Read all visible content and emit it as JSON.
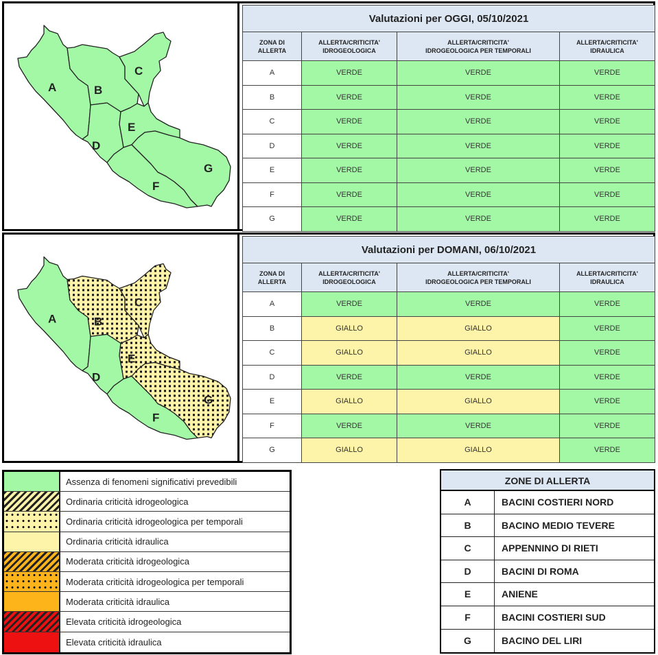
{
  "colors": {
    "verde": "#a3f8a6",
    "giallo": "#fdf3a9",
    "header_bg": "#dde7f3",
    "map_green": "#a3f8a6",
    "map_yellow": "#fdf3a9"
  },
  "table_headers": {
    "zona": [
      "ZONA DI",
      "ALLERTA"
    ],
    "idrogeologica": [
      "ALLERTA/CRITICITA'",
      "IDROGEOLOGICA"
    ],
    "temporali": [
      "ALLERTA/CRITICITA'",
      "IDROGEOLOGICA PER TEMPORALI"
    ],
    "idraulica": [
      "ALLERTA/CRITICITA'",
      "IDRAULICA"
    ]
  },
  "map_labels": [
    "A",
    "B",
    "C",
    "D",
    "E",
    "F",
    "G"
  ],
  "today": {
    "title": "Valutazioni per OGGI, 05/10/2021",
    "rows": [
      {
        "zone": "A",
        "idrogeologica": "VERDE",
        "temporali": "VERDE",
        "idraulica": "VERDE"
      },
      {
        "zone": "B",
        "idrogeologica": "VERDE",
        "temporali": "VERDE",
        "idraulica": "VERDE"
      },
      {
        "zone": "C",
        "idrogeologica": "VERDE",
        "temporali": "VERDE",
        "idraulica": "VERDE"
      },
      {
        "zone": "D",
        "idrogeologica": "VERDE",
        "temporali": "VERDE",
        "idraulica": "VERDE"
      },
      {
        "zone": "E",
        "idrogeologica": "VERDE",
        "temporali": "VERDE",
        "idraulica": "VERDE"
      },
      {
        "zone": "F",
        "idrogeologica": "VERDE",
        "temporali": "VERDE",
        "idraulica": "VERDE"
      },
      {
        "zone": "G",
        "idrogeologica": "VERDE",
        "temporali": "VERDE",
        "idraulica": "VERDE"
      }
    ]
  },
  "tomorrow": {
    "title": "Valutazioni per DOMANI, 06/10/2021",
    "rows": [
      {
        "zone": "A",
        "idrogeologica": "VERDE",
        "temporali": "VERDE",
        "idraulica": "VERDE"
      },
      {
        "zone": "B",
        "idrogeologica": "GIALLO",
        "temporali": "GIALLO",
        "idraulica": "VERDE"
      },
      {
        "zone": "C",
        "idrogeologica": "GIALLO",
        "temporali": "GIALLO",
        "idraulica": "VERDE"
      },
      {
        "zone": "D",
        "idrogeologica": "VERDE",
        "temporali": "VERDE",
        "idraulica": "VERDE"
      },
      {
        "zone": "E",
        "idrogeologica": "GIALLO",
        "temporali": "GIALLO",
        "idraulica": "VERDE"
      },
      {
        "zone": "F",
        "idrogeologica": "VERDE",
        "temporali": "VERDE",
        "idraulica": "VERDE"
      },
      {
        "zone": "G",
        "idrogeologica": "GIALLO",
        "temporali": "GIALLO",
        "idraulica": "VERDE"
      }
    ]
  },
  "legend": [
    {
      "label": "Assenza di fenomeni significativi prevedibili",
      "swatch": "green"
    },
    {
      "label": "Ordinaria criticità idrogeologica",
      "swatch": "yellow-hatch"
    },
    {
      "label": "Ordinaria criticità idrogeologica per temporali",
      "swatch": "yellow-dots"
    },
    {
      "label": "Ordinaria criticità idraulica",
      "swatch": "yellow"
    },
    {
      "label": "Moderata criticità idrogeologica",
      "swatch": "orange-hatch"
    },
    {
      "label": "Moderata criticità idrogeologica per temporali",
      "swatch": "orange-dots"
    },
    {
      "label": "Moderata criticità idraulica",
      "swatch": "orange"
    },
    {
      "label": "Elevata criticità idrogeologica",
      "swatch": "red-hatch"
    },
    {
      "label": "Elevata criticità idraulica",
      "swatch": "red"
    }
  ],
  "zones": {
    "title": "ZONE DI ALLERTA",
    "items": [
      {
        "letter": "A",
        "name": "BACINI COSTIERI NORD"
      },
      {
        "letter": "B",
        "name": "BACINO MEDIO TEVERE"
      },
      {
        "letter": "C",
        "name": "APPENNINO DI RIETI"
      },
      {
        "letter": "D",
        "name": "BACINI DI ROMA"
      },
      {
        "letter": "E",
        "name": "ANIENE"
      },
      {
        "letter": "F",
        "name": "BACINI COSTIERI SUD"
      },
      {
        "letter": "G",
        "name": "BACINO DEL LIRI"
      }
    ]
  }
}
